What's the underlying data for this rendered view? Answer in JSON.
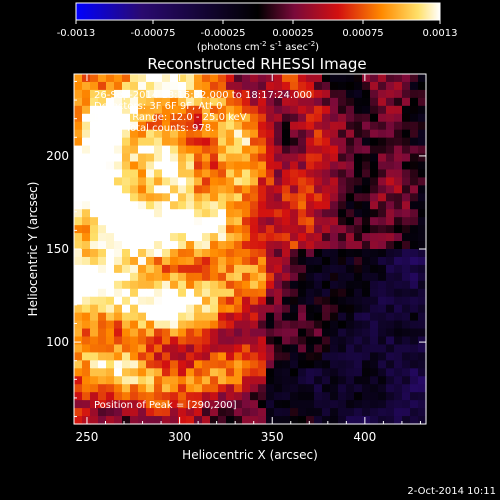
{
  "colorbar": {
    "ticks": [
      "-0.0013",
      "-0.00075",
      "-0.00025",
      "0.00025",
      "0.00075",
      "0.0013"
    ],
    "units_main": "(photons cm",
    "units_sup1": "-2",
    "units_mid": " s",
    "units_sup2": "-1",
    "units_end": " asec",
    "units_sup3": "-2",
    "units_close": ")"
  },
  "overlay": {
    "line1": "26-Sep-2014 18:15:32.000 to 18:17:24.000",
    "line2": "Detectors: 3F 6F 9F, Att 0",
    "line3": "Energy Range: 12.0 - 25.0 keV",
    "line4": "Clean   Total counts: 978.",
    "peak": "Position of Peak = [290,200]"
  },
  "footer": {
    "timestamp": "2-Oct-2014 10:11"
  },
  "chart_data": {
    "type": "heatmap",
    "title": "Reconstructed RHESSI Image",
    "xlabel": "Heliocentric X (arcsec)",
    "ylabel": "Heliocentric Y (arcsec)",
    "xlim": [
      243,
      433
    ],
    "ylim": [
      56,
      244
    ],
    "xticks": [
      250,
      300,
      350,
      400
    ],
    "yticks": [
      100,
      150,
      200
    ],
    "colorbar_range": [
      -0.0013,
      0.0013
    ],
    "colormap_stops": [
      "#0000ff",
      "#2a0a70",
      "#000000",
      "#7a0a3a",
      "#d21010",
      "#ff8a00",
      "#ffe06a",
      "#ffffff"
    ],
    "peak_position": [
      290,
      200
    ]
  }
}
